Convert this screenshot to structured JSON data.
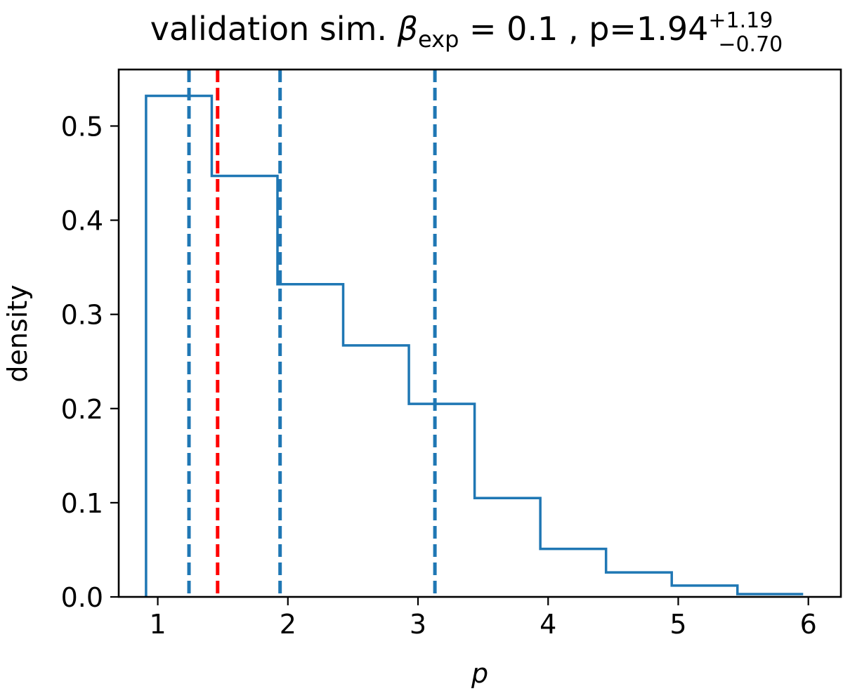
{
  "chart_data": {
    "type": "histogram",
    "title": {
      "prefix": "validation sim. ",
      "beta_symbol": "β",
      "beta_subscript": "exp",
      "beta_value": " = 0.1 , p=1.94",
      "upper_error": "+1.19",
      "lower_error": "−0.70"
    },
    "xlabel": "p",
    "ylabel": "density",
    "xlim": [
      0.7,
      6.25
    ],
    "ylim": [
      0,
      0.56
    ],
    "xticks": [
      1,
      2,
      3,
      4,
      5,
      6
    ],
    "xtick_labels": [
      "1",
      "2",
      "3",
      "4",
      "5",
      "6"
    ],
    "yticks": [
      0.0,
      0.1,
      0.2,
      0.3,
      0.4,
      0.5
    ],
    "ytick_labels": [
      "0.0",
      "0.1",
      "0.2",
      "0.3",
      "0.4",
      "0.5"
    ],
    "histogram": {
      "histtype": "step",
      "color": "#1f77b4",
      "bin_edges": [
        0.91,
        1.415,
        1.92,
        2.425,
        2.93,
        3.435,
        3.94,
        4.445,
        4.95,
        5.455,
        5.96
      ],
      "densities": [
        0.532,
        0.447,
        0.332,
        0.267,
        0.205,
        0.105,
        0.051,
        0.026,
        0.012,
        0.003
      ]
    },
    "vertical_lines": [
      {
        "name": "lower-quantile-line",
        "x": 1.24,
        "color": "#1f77b4",
        "style": "dashed"
      },
      {
        "name": "true-value-line",
        "x": 1.46,
        "color": "#ff0000",
        "style": "dashed"
      },
      {
        "name": "median-line",
        "x": 1.94,
        "color": "#1f77b4",
        "style": "dashed"
      },
      {
        "name": "upper-quantile-line",
        "x": 3.13,
        "color": "#1f77b4",
        "style": "dashed"
      }
    ]
  }
}
